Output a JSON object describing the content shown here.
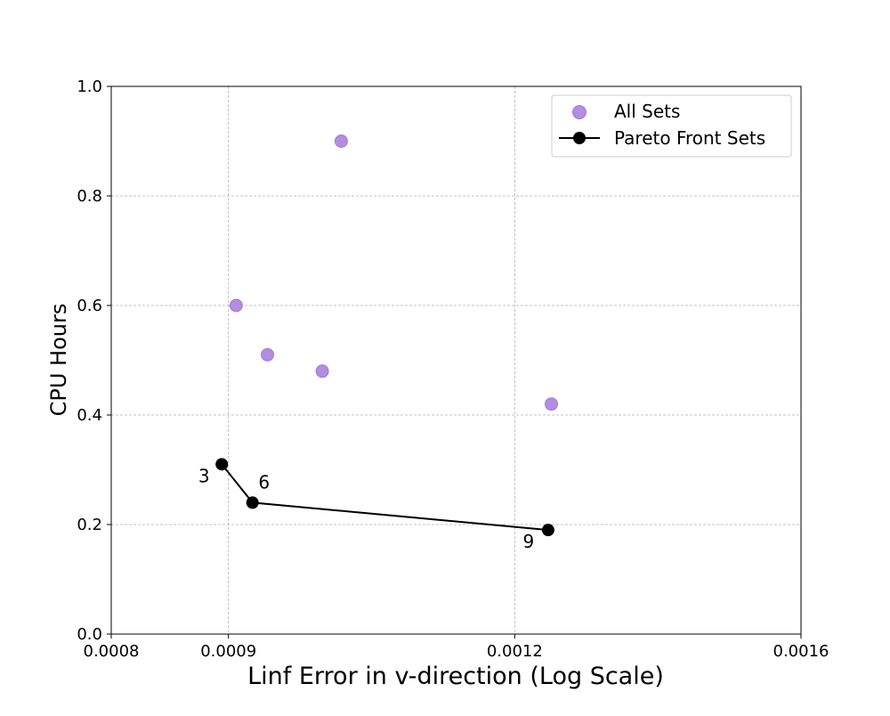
{
  "chart_data": {
    "type": "scatter",
    "title": "",
    "xlabel": "Linf Error in v-direction (Log Scale)",
    "ylabel": "CPU Hours",
    "x_scale": "log",
    "xlim": [
      0.0008,
      0.0016
    ],
    "ylim": [
      0.0,
      1.0
    ],
    "x_ticks": [
      {
        "value": 0.0008,
        "label": "0.0008"
      },
      {
        "value": 0.0009,
        "label": "0.0009"
      },
      {
        "value": 0.0012,
        "label": "0.0012"
      },
      {
        "value": 0.0016,
        "label": "0.0016"
      }
    ],
    "y_ticks": [
      {
        "value": 0.0,
        "label": "0.0"
      },
      {
        "value": 0.2,
        "label": "0.2"
      },
      {
        "value": 0.4,
        "label": "0.4"
      },
      {
        "value": 0.6,
        "label": "0.6"
      },
      {
        "value": 0.8,
        "label": "0.8"
      },
      {
        "value": 1.0,
        "label": "1.0"
      }
    ],
    "grid": true,
    "legend_position": "top-right",
    "series": [
      {
        "name": "All Sets",
        "kind": "scatter",
        "color": "#b48ce0",
        "edge_color": "#a37bd6",
        "points": [
          {
            "x": 0.000907,
            "y": 0.6
          },
          {
            "x": 0.000936,
            "y": 0.51
          },
          {
            "x": 0.000989,
            "y": 0.48
          },
          {
            "x": 0.001008,
            "y": 0.9
          },
          {
            "x": 0.001245,
            "y": 0.42
          }
        ]
      },
      {
        "name": "Pareto Front Sets",
        "kind": "line-marker",
        "color": "#000000",
        "points": [
          {
            "x": 0.000894,
            "y": 0.31,
            "label": "3"
          },
          {
            "x": 0.000922,
            "y": 0.24,
            "label": "6"
          },
          {
            "x": 0.001241,
            "y": 0.19,
            "label": "9"
          }
        ]
      }
    ]
  }
}
